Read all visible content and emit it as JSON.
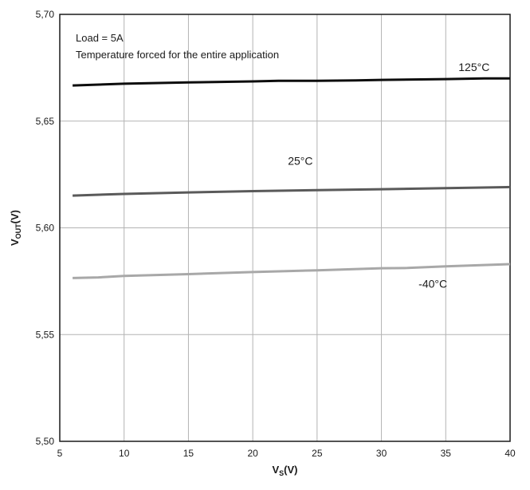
{
  "chart_data": {
    "type": "line",
    "xlabel": "V",
    "xlabel_sub": "S",
    "xlabel_unit": "(V)",
    "ylabel": "V",
    "ylabel_sub": "OUT",
    "ylabel_unit": "(V)",
    "xlim": [
      5,
      40
    ],
    "ylim": [
      5.5,
      5.7
    ],
    "xticks": [
      5,
      10,
      15,
      20,
      25,
      30,
      35,
      40
    ],
    "xtick_labels": [
      "5",
      "10",
      "15",
      "20",
      "25",
      "30",
      "35",
      "40"
    ],
    "yticks": [
      5.5,
      5.55,
      5.6,
      5.65,
      5.7
    ],
    "ytick_labels": [
      "5,50",
      "5,55",
      "5,60",
      "5,65",
      "5,70"
    ],
    "grid": true,
    "annotations": [
      "Load = 5A",
      "Temperature forced for the entire application"
    ],
    "series": [
      {
        "name": "125°C",
        "color": "#0d0d0d",
        "x": [
          6,
          10,
          15,
          20,
          22,
          25,
          28,
          30,
          35,
          38,
          40
        ],
        "y": [
          5.6667,
          5.6675,
          5.6681,
          5.6686,
          5.6689,
          5.6689,
          5.6691,
          5.6693,
          5.6697,
          5.67,
          5.67
        ]
      },
      {
        "name": "25°C",
        "color": "#5a5a5a",
        "x": [
          6,
          10,
          15,
          20,
          25,
          30,
          35,
          40
        ],
        "y": [
          5.6151,
          5.6159,
          5.6166,
          5.6172,
          5.6177,
          5.6181,
          5.6186,
          5.6191
        ]
      },
      {
        "name": "-40°C",
        "color": "#a8a8a8",
        "x": [
          6,
          8,
          10,
          15,
          20,
          25,
          30,
          32,
          35,
          40
        ],
        "y": [
          5.5765,
          5.5768,
          5.5775,
          5.5783,
          5.5793,
          5.5801,
          5.5811,
          5.5812,
          5.582,
          5.583
        ]
      }
    ]
  }
}
